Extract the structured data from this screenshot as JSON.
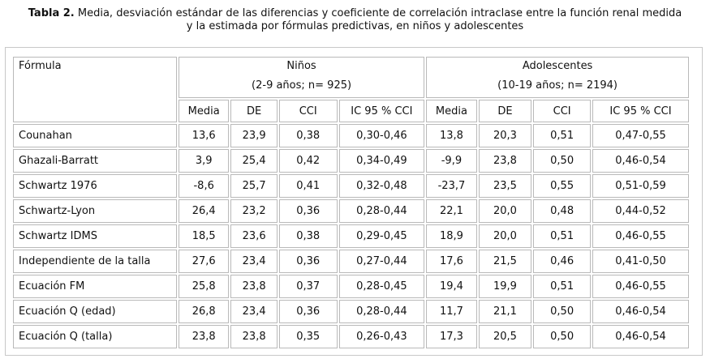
{
  "caption": {
    "label": "Tabla 2.",
    "line1": "Media, desviación estándar de las diferencias y coeficiente de correlación intraclase entre la función renal medida",
    "line2": "y la estimada por fórmulas predictivas, en niños y adolescentes"
  },
  "table": {
    "formula_header": "Fórmula",
    "groups": [
      {
        "name": "Niños",
        "detail": "(2-9 años; n= 925)"
      },
      {
        "name": "Adolescentes",
        "detail": "(10-19 años;  n= 2194)"
      }
    ],
    "columns": [
      "Media",
      "DE",
      "CCI",
      "IC 95 % CCI",
      "Media",
      "DE",
      "CCI",
      "IC 95 % CCI"
    ],
    "rows": [
      {
        "formula": "Counahan",
        "values": [
          "13,6",
          "23,9",
          "0,38",
          "0,30-0,46",
          "13,8",
          "20,3",
          "0,51",
          "0,47-0,55"
        ]
      },
      {
        "formula": "Ghazali-Barratt",
        "values": [
          "3,9",
          "25,4",
          "0,42",
          "0,34-0,49",
          "-9,9",
          "23,8",
          "0,50",
          "0,46-0,54"
        ]
      },
      {
        "formula": "Schwartz 1976",
        "values": [
          "-8,6",
          "25,7",
          "0,41",
          "0,32-0,48",
          "-23,7",
          "23,5",
          "0,55",
          "0,51-0,59"
        ]
      },
      {
        "formula": "Schwartz-Lyon",
        "values": [
          "26,4",
          "23,2",
          "0,36",
          "0,28-0,44",
          "22,1",
          "20,0",
          "0,48",
          "0,44-0,52"
        ]
      },
      {
        "formula": "Schwartz IDMS",
        "values": [
          "18,5",
          "23,6",
          "0,38",
          "0,29-0,45",
          "18,9",
          "20,0",
          "0,51",
          "0,46-0,55"
        ]
      },
      {
        "formula": "Independiente de la talla",
        "values": [
          "27,6",
          "23,4",
          "0,36",
          "0,27-0,44",
          "17,6",
          "21,5",
          "0,46",
          "0,41-0,50"
        ]
      },
      {
        "formula": "Ecuación FM",
        "values": [
          "25,8",
          "23,8",
          "0,37",
          "0,28-0,45",
          "19,4",
          "19,9",
          "0,51",
          "0,46-0,55"
        ]
      },
      {
        "formula": "Ecuación Q (edad)",
        "values": [
          "26,8",
          "23,4",
          "0,36",
          "0,28-0,44",
          "11,7",
          "21,1",
          "0,50",
          "0,46-0,54"
        ]
      },
      {
        "formula": "Ecuación Q (talla)",
        "values": [
          "23,8",
          "23,8",
          "0,35",
          "0,26-0,43",
          "17,3",
          "20,5",
          "0,50",
          "0,46-0,54"
        ]
      }
    ]
  }
}
